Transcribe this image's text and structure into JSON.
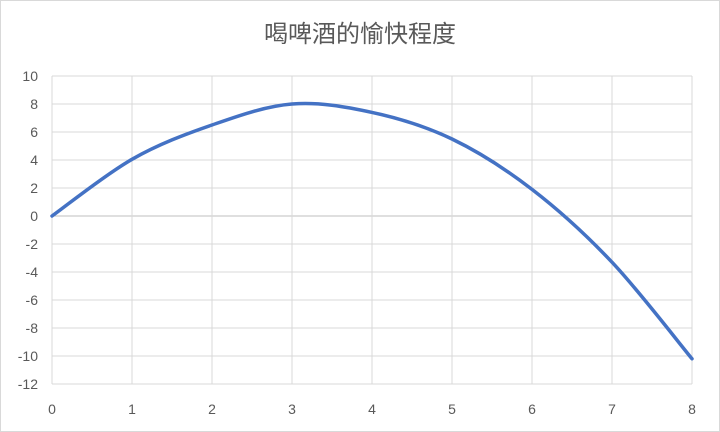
{
  "chart_data": {
    "type": "line",
    "title": "喝啤酒的愉快程度",
    "xlabel": "",
    "ylabel": "",
    "x": [
      0,
      1,
      2,
      3,
      4,
      5,
      6,
      7,
      8
    ],
    "series": [
      {
        "values": [
          0,
          4.05,
          6.5,
          8.0,
          7.4,
          5.5,
          1.9,
          -3.3,
          -10.2
        ],
        "color": "#4472c4",
        "smooth": true
      }
    ],
    "xlim": [
      0,
      8
    ],
    "ylim": [
      -12,
      10
    ],
    "xticks": [
      0,
      1,
      2,
      3,
      4,
      5,
      6,
      7,
      8
    ],
    "yticks": [
      10,
      8,
      6,
      4,
      2,
      0,
      -2,
      -4,
      -6,
      -8,
      -10,
      -12
    ],
    "grid": true,
    "legend": "none"
  }
}
